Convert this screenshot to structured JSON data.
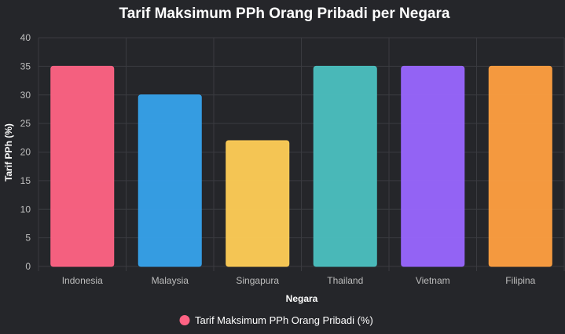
{
  "chart_data": {
    "type": "bar",
    "title": "Tarif Maksimum PPh Orang Pribadi per Negara",
    "xlabel": "Negara",
    "ylabel": "Tarif PPh (%)",
    "categories": [
      "Indonesia",
      "Malaysia",
      "Singapura",
      "Thailand",
      "Vietnam",
      "Filipina"
    ],
    "series": [
      {
        "name": "Tarif Maksimum PPh Orang Pribadi (%)",
        "values": [
          35,
          30,
          22,
          35,
          35,
          35
        ]
      }
    ],
    "ylim": [
      0,
      40
    ],
    "yticks": [
      0,
      5,
      10,
      15,
      20,
      25,
      30,
      35,
      40
    ],
    "grid": true,
    "legend_position": "bottom",
    "colors": [
      "#ff6384",
      "#36a2eb",
      "#ffcd56",
      "#4bc0c0",
      "#9966ff",
      "#ff9f40"
    ],
    "background": "#25262a",
    "grid_color": "#3a3b40"
  }
}
